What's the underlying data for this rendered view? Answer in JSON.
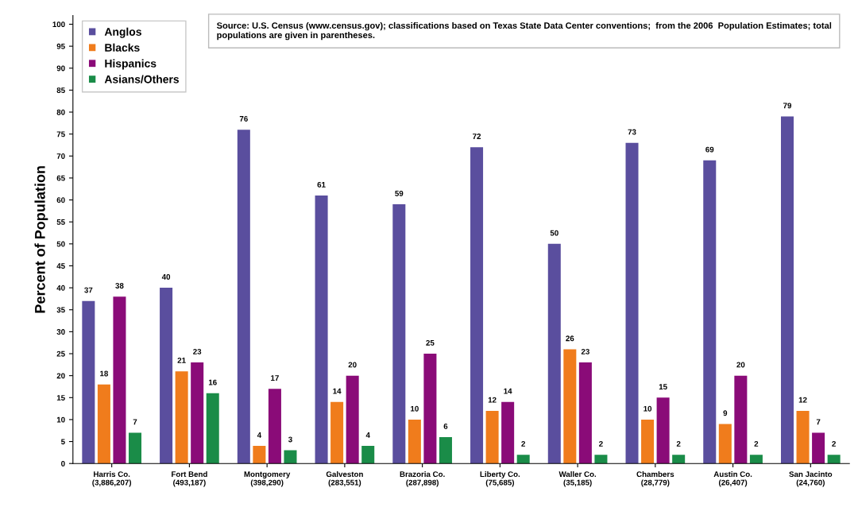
{
  "chart_data": {
    "type": "bar",
    "ylabel": "Percent of Population",
    "categories": [
      "Harris Co.\n(3,886,207)",
      "Fort Bend\n(493,187)",
      "Montgomery\n(398,290)",
      "Galveston\n(283,551)",
      "Brazoria Co.\n(287,898)",
      "Liberty Co.\n(75,685)",
      "Waller Co.\n(35,185)",
      "Chambers\n(28,779)",
      "Austin Co.\n(26,407)",
      "San Jacinto\n(24,760)"
    ],
    "series": [
      {
        "name": "Anglos",
        "color": "#5a4e9e",
        "values": [
          37,
          40,
          76,
          61,
          59,
          72,
          50,
          73,
          69,
          79
        ]
      },
      {
        "name": "Blacks",
        "color": "#f07c1c",
        "values": [
          18,
          21,
          4,
          14,
          10,
          12,
          26,
          10,
          9,
          12
        ]
      },
      {
        "name": "Hispanics",
        "color": "#8a0b78",
        "values": [
          38,
          23,
          17,
          20,
          25,
          14,
          23,
          15,
          20,
          7
        ]
      },
      {
        "name": "Asians/Others",
        "color": "#1a8c48",
        "values": [
          7,
          16,
          3,
          4,
          6,
          2,
          2,
          2,
          2,
          2
        ]
      }
    ],
    "ylim": [
      0,
      102
    ],
    "yticks": [
      0,
      5,
      10,
      15,
      20,
      25,
      30,
      35,
      40,
      45,
      50,
      55,
      60,
      65,
      70,
      75,
      80,
      85,
      90,
      95,
      100
    ],
    "grid": false,
    "legend": "top left",
    "data_labels": true,
    "annotations": [
      "Source: U.S. Census (www.census.gov); classifications based on Texas State Data Center conventions;  from the 2006  Population Estimates; total populations are given in parentheses."
    ]
  }
}
